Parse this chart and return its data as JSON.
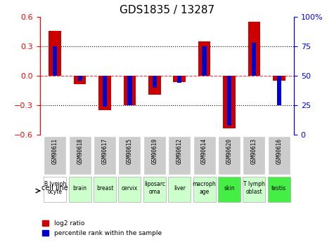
{
  "title": "GDS1835 / 13287",
  "samples": [
    "GSM90611",
    "GSM90618",
    "GSM90617",
    "GSM90615",
    "GSM90619",
    "GSM90612",
    "GSM90614",
    "GSM90620",
    "GSM90613",
    "GSM90616"
  ],
  "cell_lines": [
    "B lymph\nocyte",
    "brain",
    "breast",
    "cervix",
    "liposarc\noma",
    "liver",
    "macroph\nage",
    "skin",
    "T lymph\noblast",
    "testis"
  ],
  "log2_ratio": [
    0.46,
    -0.08,
    -0.35,
    -0.3,
    -0.19,
    -0.06,
    0.35,
    -0.53,
    0.55,
    -0.05
  ],
  "percentile_rank": [
    75,
    46,
    24,
    25,
    40,
    44,
    75,
    8,
    78,
    25
  ],
  "ylim": [
    -0.6,
    0.6
  ],
  "y2lim": [
    0,
    100
  ],
  "yticks": [
    -0.6,
    -0.3,
    0,
    0.3,
    0.6
  ],
  "y2ticks": [
    0,
    25,
    50,
    75,
    100
  ],
  "y2ticklabels": [
    "0",
    "25",
    "50",
    "75",
    "100%"
  ],
  "bar_width": 0.5,
  "red_color": "#cc0000",
  "blue_color": "#0000cc",
  "legend_red": "log2 ratio",
  "legend_blue": "percentile rank within the sample",
  "sample_bg_color": "#cccccc",
  "cell_bg_colors": [
    "#ffffff",
    "#ccffcc",
    "#ccffcc",
    "#ccffcc",
    "#ccffcc",
    "#ccffcc",
    "#ccffcc",
    "#44ee44",
    "#ccffcc",
    "#44ee44"
  ]
}
